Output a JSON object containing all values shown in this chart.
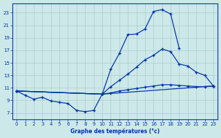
{
  "title": "Graphe des températures (°c)",
  "bg_color": "#cce8e8",
  "grid_color": "#aacccc",
  "line_color": "#0033aa",
  "xlim": [
    -0.5,
    23.5
  ],
  "ylim": [
    6.0,
    24.5
  ],
  "xticks": [
    0,
    1,
    2,
    3,
    4,
    5,
    6,
    7,
    8,
    9,
    10,
    11,
    12,
    13,
    14,
    15,
    16,
    17,
    18,
    19,
    20,
    21,
    22,
    23
  ],
  "yticks": [
    7,
    9,
    11,
    13,
    15,
    17,
    19,
    21,
    23
  ],
  "curve1_x": [
    0,
    1,
    2,
    3,
    4,
    5,
    6,
    7,
    8,
    9,
    10,
    11,
    12,
    13,
    14,
    15,
    16,
    17,
    18,
    19
  ],
  "curve1_y": [
    10.5,
    9.8,
    9.2,
    9.5,
    8.9,
    8.7,
    8.5,
    7.4,
    7.2,
    7.4,
    10.0,
    14.0,
    16.5,
    19.5,
    19.6,
    20.4,
    23.2,
    23.5,
    22.8,
    17.3
  ],
  "curve2_x": [
    0,
    10,
    23
  ],
  "curve2_y": [
    10.5,
    10.0,
    11.3
  ],
  "curve3_x": [
    0,
    10,
    11,
    12,
    13,
    14,
    15,
    16,
    17,
    18,
    19,
    20,
    21,
    22,
    23
  ],
  "curve3_y": [
    10.5,
    10.0,
    11.2,
    12.2,
    13.2,
    14.3,
    15.5,
    16.2,
    17.2,
    16.8,
    14.8,
    14.5,
    13.5,
    13.0,
    11.3
  ],
  "curve4_x": [
    0,
    10,
    11,
    12,
    13,
    14,
    15,
    16,
    17,
    18,
    19,
    20,
    21,
    22,
    23
  ],
  "curve4_y": [
    10.5,
    10.0,
    10.2,
    10.5,
    10.7,
    10.9,
    11.1,
    11.3,
    11.5,
    11.5,
    11.4,
    11.3,
    11.2,
    11.2,
    11.3
  ]
}
